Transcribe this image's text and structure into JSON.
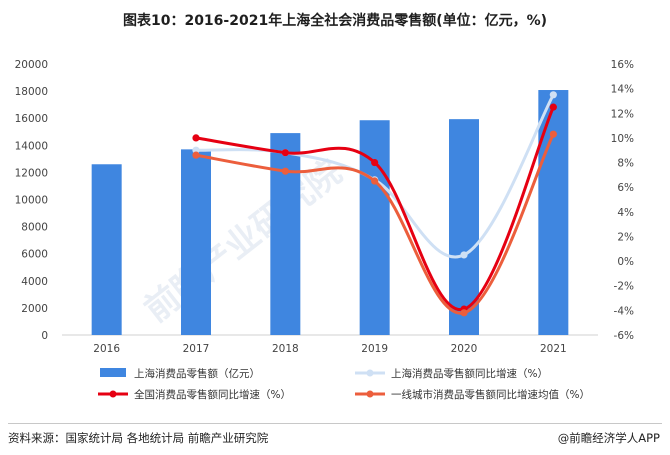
{
  "title": "图表10：2016-2021年上海全社会消费品零售额(单位：亿元，%)",
  "source": "资料来源：国家统计局 各地统计局 前瞻产业研究院",
  "brand": "@前瞻经济学人APP",
  "watermark": "前瞻产业研究院",
  "chart_data": {
    "type": "bar",
    "categories": [
      "2016",
      "2017",
      "2018",
      "2019",
      "2020",
      "2021"
    ],
    "left_axis": {
      "ylim": [
        0,
        20000
      ],
      "ticks": [
        "0",
        "2000",
        "4000",
        "6000",
        "8000",
        "10000",
        "12000",
        "14000",
        "16000",
        "18000",
        "20000"
      ]
    },
    "right_axis": {
      "ylim": [
        -6,
        16
      ],
      "ticks": [
        "-6%",
        "-4%",
        "-2%",
        "0%",
        "2%",
        "4%",
        "6%",
        "8%",
        "10%",
        "12%",
        "14%",
        "16%"
      ]
    },
    "series": [
      {
        "name": "上海消费品零售额（亿元）",
        "type": "bar",
        "axis": "left",
        "color": "#3f86e0",
        "values": [
          12600,
          13700,
          14900,
          15850,
          15930,
          18080
        ]
      },
      {
        "name": "上海消费品零售额同比增速（%）",
        "type": "line",
        "axis": "right",
        "color": "#cfe0f4",
        "x": [
          "2017",
          "2018",
          "2019",
          "2020",
          "2021"
        ],
        "values": [
          9.0,
          8.8,
          6.6,
          0.5,
          13.5
        ]
      },
      {
        "name": "全国消费品零售额同比增速（%）",
        "type": "line",
        "axis": "right",
        "color": "#e60012",
        "x": [
          "2017",
          "2018",
          "2019",
          "2020",
          "2021"
        ],
        "values": [
          10.0,
          8.8,
          8.0,
          -3.9,
          12.5
        ]
      },
      {
        "name": "一线城市消费品零售额同比增速均值（%）",
        "type": "line",
        "axis": "right",
        "color": "#ec5e3c",
        "x": [
          "2017",
          "2018",
          "2019",
          "2020",
          "2021"
        ],
        "values": [
          8.6,
          7.3,
          6.5,
          -4.2,
          10.3
        ]
      }
    ]
  }
}
